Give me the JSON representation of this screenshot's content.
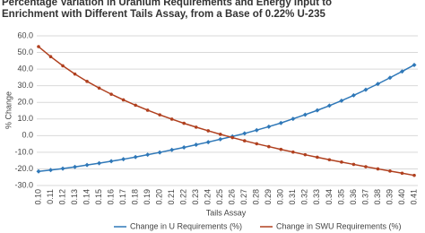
{
  "chart_data": {
    "type": "line",
    "title": "Percentage Variation in Uranium Requirements and Energy Input to Enrichment with Different Tails Assay, from a Base of 0.22% U-235",
    "x_label": "Tails Assay",
    "y_label": "% Change",
    "categories": [
      "0.10",
      "0.11",
      "0.12",
      "0.13",
      "0.14",
      "0.15",
      "0.16",
      "0.17",
      "0.18",
      "0.19",
      "0.20",
      "0.21",
      "0.22",
      "0.23",
      "0.24",
      "0.25",
      "0.26",
      "0.27",
      "0.28",
      "0.29",
      "0.30",
      "0.31",
      "0.32",
      "0.33",
      "0.34",
      "0.35",
      "0.36",
      "0.37",
      "0.38",
      "0.39",
      "0.40",
      "0.41"
    ],
    "series": [
      {
        "name": "Change in U Requirements (%)",
        "color": "#2f78b8",
        "marker": "diamond",
        "values": [
          -21.5,
          -20.7,
          -19.8,
          -18.8,
          -17.7,
          -16.6,
          -15.4,
          -14.2,
          -12.9,
          -11.5,
          -10.1,
          -8.6,
          -7.1,
          -5.5,
          -3.9,
          -2.2,
          -0.5,
          1.3,
          3.3,
          5.4,
          7.6,
          10.1,
          12.6,
          15.2,
          18.0,
          21.0,
          24.2,
          27.6,
          31.1,
          34.8,
          38.6,
          42.5
        ]
      },
      {
        "name": "Change in SWU Requirements (%)",
        "color": "#b0401f",
        "marker": "circle",
        "values": [
          53.5,
          47.5,
          42.0,
          37.0,
          32.6,
          28.6,
          24.9,
          21.5,
          18.3,
          15.3,
          12.5,
          9.9,
          7.4,
          5.1,
          2.9,
          0.8,
          -1.2,
          -3.1,
          -4.9,
          -6.6,
          -8.3,
          -9.9,
          -11.5,
          -13.0,
          -14.5,
          -15.9,
          -17.3,
          -18.7,
          -20.0,
          -21.3,
          -22.6,
          -23.9
        ]
      }
    ],
    "ylim": [
      -30,
      60
    ],
    "yticks": [
      {
        "value": 60,
        "label": "60.0"
      },
      {
        "value": 50,
        "label": "50.0"
      },
      {
        "value": 40,
        "label": "40.0"
      },
      {
        "value": 30,
        "label": "30.0"
      },
      {
        "value": 20,
        "label": "20.0"
      },
      {
        "value": 10,
        "label": "10.0"
      },
      {
        "value": 0,
        "label": "0.0"
      },
      {
        "value": -10,
        "label": "-10.0"
      },
      {
        "value": -20,
        "label": "-20.0"
      },
      {
        "value": -30,
        "label": "-30.0"
      }
    ],
    "grid": true,
    "legend": "bottom"
  }
}
